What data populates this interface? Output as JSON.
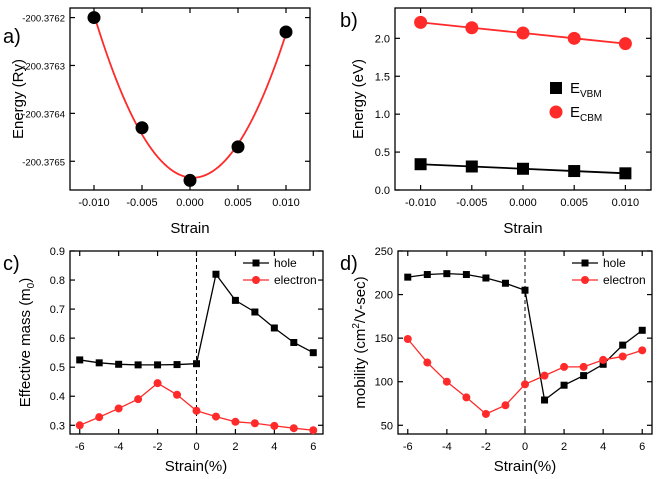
{
  "chart_data": [
    {
      "panel": "a)",
      "type": "scatter",
      "title": "",
      "xlabel": "Strain",
      "ylabel": "Energy (Ry)",
      "xlim": [
        -0.0125,
        0.0125
      ],
      "ylim": [
        -200.37656,
        -200.37618
      ],
      "xticks": [
        -0.01,
        -0.005,
        0.0,
        0.005,
        0.01
      ],
      "xtick_labels": [
        "-0.010",
        "-0.005",
        "0.000",
        "0.005",
        "0.010"
      ],
      "yticks": [
        -200.3762,
        -200.3763,
        -200.3764,
        -200.3765
      ],
      "ytick_labels": [
        "-200.3762",
        "-200.3763",
        "-200.3764",
        "-200.3765"
      ],
      "series": [
        {
          "name": "data",
          "marker": "circle",
          "color": "#000000",
          "x": [
            -0.01,
            -0.005,
            0.0,
            0.005,
            0.01
          ],
          "y": [
            -200.3762,
            -200.37643,
            -200.37654,
            -200.37647,
            -200.37623
          ]
        }
      ],
      "fit": {
        "type": "quadratic",
        "color": "#ff2a2a"
      }
    },
    {
      "panel": "b)",
      "type": "line",
      "title": "",
      "xlabel": "Strain",
      "ylabel": "Energy (eV)",
      "xlim": [
        -0.0125,
        0.0125
      ],
      "ylim": [
        0,
        2.4
      ],
      "xticks": [
        -0.01,
        -0.005,
        0.0,
        0.005,
        0.01
      ],
      "xtick_labels": [
        "-0.010",
        "-0.005",
        "0.000",
        "0.005",
        "0.010"
      ],
      "yticks": [
        0.0,
        0.5,
        1.0,
        1.5,
        2.0
      ],
      "ytick_labels": [
        "0.0",
        "0.5",
        "1.0",
        "1.5",
        "2.0"
      ],
      "legend_position": "right",
      "series": [
        {
          "name": "E",
          "sub": "VBM",
          "marker": "square",
          "color": "#000000",
          "x": [
            -0.01,
            -0.005,
            0.0,
            0.005,
            0.01
          ],
          "y": [
            0.34,
            0.31,
            0.28,
            0.25,
            0.22
          ]
        },
        {
          "name": "E",
          "sub": "CBM",
          "marker": "circle",
          "color": "#ff2a2a",
          "x": [
            -0.01,
            -0.005,
            0.0,
            0.005,
            0.01
          ],
          "y": [
            2.21,
            2.14,
            2.07,
            2.0,
            1.93
          ]
        }
      ]
    },
    {
      "panel": "c)",
      "type": "line",
      "title": "",
      "xlabel": "Strain(%)",
      "ylabel": "Effective mass (m",
      "ylabel_sub": "0",
      "ylabel_end": ")",
      "xlim": [
        -6.5,
        6.5
      ],
      "ylim": [
        0.27,
        0.9
      ],
      "xticks": [
        -6,
        -4,
        -2,
        0,
        2,
        4,
        6
      ],
      "xtick_labels": [
        "-6",
        "-4",
        "-2",
        "0",
        "2",
        "4",
        "6"
      ],
      "yticks": [
        0.3,
        0.4,
        0.5,
        0.6,
        0.7,
        0.8,
        0.9
      ],
      "ytick_labels": [
        "0.3",
        "0.4",
        "0.5",
        "0.6",
        "0.7",
        "0.8",
        "0.9"
      ],
      "vline_x": 0,
      "legend_position": "top-right",
      "series": [
        {
          "name": "hole",
          "marker": "square",
          "color": "#000000",
          "x": [
            -6,
            -5,
            -4,
            -3,
            -2,
            -1,
            0,
            1,
            2,
            3,
            4,
            5,
            6
          ],
          "y": [
            0.525,
            0.515,
            0.51,
            0.508,
            0.508,
            0.509,
            0.512,
            0.82,
            0.73,
            0.69,
            0.635,
            0.585,
            0.55
          ]
        },
        {
          "name": "electron",
          "marker": "circle",
          "color": "#ff2a2a",
          "x": [
            -6,
            -5,
            -4,
            -3,
            -2,
            -1,
            0,
            1,
            2,
            3,
            4,
            5,
            6
          ],
          "y": [
            0.3,
            0.328,
            0.358,
            0.39,
            0.445,
            0.405,
            0.35,
            0.33,
            0.312,
            0.307,
            0.298,
            0.29,
            0.283
          ]
        }
      ]
    },
    {
      "panel": "d)",
      "type": "line",
      "title": "",
      "xlabel": "Strain(%)",
      "ylabel": "mobility (cm",
      "ylabel_sup": "2",
      "ylabel_end": "/V-sec)",
      "xlim": [
        -6.5,
        6.5
      ],
      "ylim": [
        40,
        250
      ],
      "xticks": [
        -6,
        -4,
        -2,
        0,
        2,
        4,
        6
      ],
      "xtick_labels": [
        "-6",
        "-4",
        "-2",
        "0",
        "2",
        "4",
        "6"
      ],
      "yticks": [
        50,
        100,
        150,
        200,
        250
      ],
      "ytick_labels": [
        "50",
        "100",
        "150",
        "200",
        "250"
      ],
      "vline_x": 0,
      "legend_position": "top-right",
      "series": [
        {
          "name": "hole",
          "marker": "square",
          "color": "#000000",
          "x": [
            -6,
            -5,
            -4,
            -3,
            -2,
            -1,
            0,
            1,
            2,
            3,
            4,
            5,
            6
          ],
          "y": [
            220,
            223,
            224,
            223,
            219,
            213,
            205,
            79,
            96,
            107,
            120,
            142,
            159
          ]
        },
        {
          "name": "electron",
          "marker": "circle",
          "color": "#ff2a2a",
          "x": [
            -6,
            -5,
            -4,
            -3,
            -2,
            -1,
            0,
            1,
            2,
            3,
            4,
            5,
            6
          ],
          "y": [
            149,
            122,
            100,
            82,
            63,
            73,
            97,
            107,
            117,
            117,
            125,
            129,
            136
          ]
        }
      ]
    }
  ]
}
